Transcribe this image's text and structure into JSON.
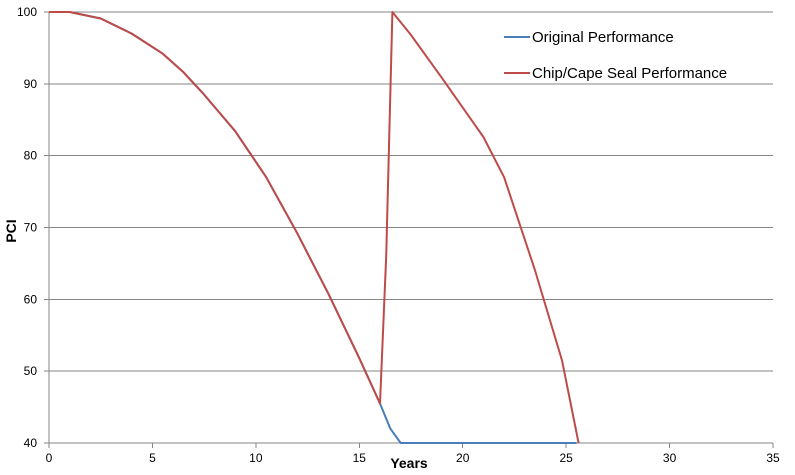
{
  "chart_data": {
    "type": "line",
    "title": "",
    "xlabel": "Years",
    "ylabel": "PCI",
    "xlim": [
      0,
      35
    ],
    "ylim": [
      40,
      100
    ],
    "x_ticks": [
      0,
      5,
      10,
      15,
      20,
      25,
      30,
      35
    ],
    "y_ticks": [
      40,
      50,
      60,
      70,
      80,
      90,
      100
    ],
    "grid": "horizontal",
    "legend_position": "top-right",
    "series": [
      {
        "name": "Original Performance",
        "color": "#4a7ebb",
        "x": [
          0,
          1,
          2.5,
          4,
          5.5,
          6.5,
          7.5,
          9,
          10.5,
          12,
          13.5,
          15,
          16,
          16.5,
          17,
          18,
          20,
          22,
          24,
          25.5
        ],
        "y": [
          100,
          100,
          99.1,
          97,
          94.2,
          91.6,
          88.5,
          83.4,
          77,
          69.2,
          60.8,
          51.8,
          45.5,
          42,
          40,
          40,
          40,
          40,
          40,
          40
        ]
      },
      {
        "name": "Chip/Cape Seal Performance",
        "color": "#be4b48",
        "x": [
          0,
          1,
          2.5,
          4,
          5.5,
          6.5,
          7.5,
          9,
          10.5,
          12,
          13.5,
          15,
          16,
          16.3,
          16.6,
          17.5,
          19,
          21,
          22,
          23.5,
          24.8,
          25.6
        ],
        "y": [
          100,
          100,
          99.1,
          97,
          94.2,
          91.6,
          88.5,
          83.4,
          77,
          69.2,
          60.8,
          51.8,
          45.5,
          66,
          100,
          96.8,
          90.8,
          82.6,
          77,
          64,
          51.5,
          40
        ]
      }
    ]
  }
}
